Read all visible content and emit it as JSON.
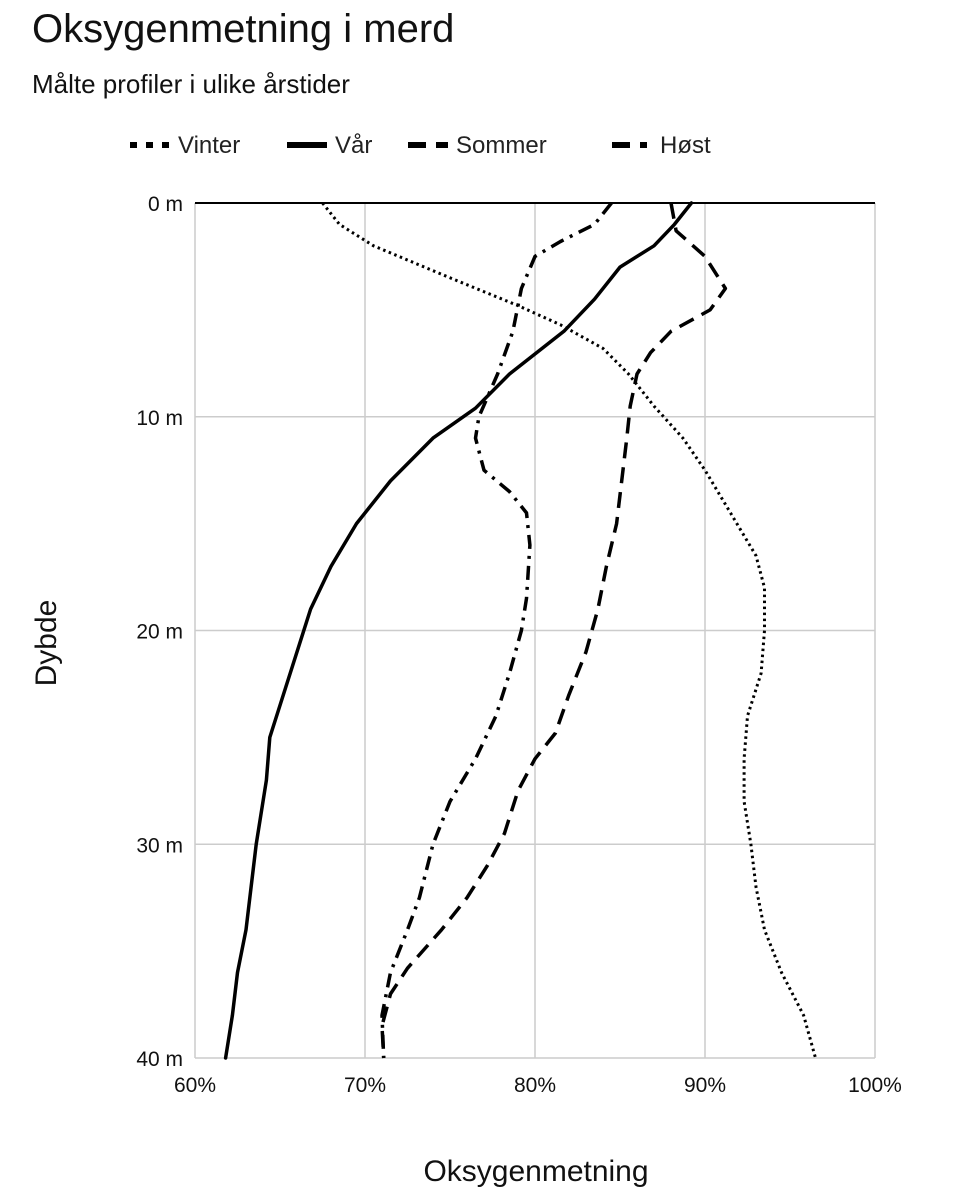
{
  "chart_data": {
    "type": "line",
    "title": "Oksygenmetning i merd",
    "subtitle": "Målte profiler i ulike årstider",
    "xlabel": "Oksygenmetning",
    "ylabel": "Dybde",
    "xlim": [
      60,
      100
    ],
    "ylim": [
      0,
      40
    ],
    "y_inverted": true,
    "x_ticks": [
      60,
      70,
      80,
      90,
      100
    ],
    "x_tick_labels": [
      "60%",
      "70%",
      "80%",
      "90%",
      "100%"
    ],
    "y_ticks": [
      0,
      10,
      20,
      30,
      40
    ],
    "y_tick_labels": [
      "0 m",
      "10 m",
      "20 m",
      "30 m",
      "40 m"
    ],
    "grid": true,
    "legend_position": "top",
    "colors": {
      "series": "#000000",
      "grid": "#cccccc"
    },
    "series": [
      {
        "name": "Vinter",
        "style": "dotted",
        "points": [
          [
            67.5,
            0
          ],
          [
            68.5,
            1
          ],
          [
            70.5,
            2
          ],
          [
            75,
            3.5
          ],
          [
            79,
            4.8
          ],
          [
            81.5,
            5.7
          ],
          [
            84,
            6.8
          ],
          [
            85.5,
            8
          ],
          [
            87,
            9.5
          ],
          [
            88.7,
            11
          ],
          [
            90,
            12.5
          ],
          [
            91.5,
            14.5
          ],
          [
            93,
            16.5
          ],
          [
            93.5,
            18
          ],
          [
            93.5,
            20
          ],
          [
            93.3,
            22
          ],
          [
            92.5,
            24
          ],
          [
            92.3,
            26
          ],
          [
            92.3,
            28
          ],
          [
            92.7,
            30
          ],
          [
            93,
            32
          ],
          [
            93.5,
            34
          ],
          [
            94.5,
            36
          ],
          [
            95.8,
            38
          ],
          [
            96.5,
            40
          ]
        ]
      },
      {
        "name": "Vår",
        "style": "solid",
        "points": [
          [
            89.2,
            0
          ],
          [
            88.2,
            1
          ],
          [
            87,
            2
          ],
          [
            85,
            3
          ],
          [
            83.5,
            4.5
          ],
          [
            81.7,
            6
          ],
          [
            78.5,
            8
          ],
          [
            76.5,
            9.6
          ],
          [
            74,
            11
          ],
          [
            71.5,
            13
          ],
          [
            69.5,
            15
          ],
          [
            68,
            17
          ],
          [
            66.8,
            19
          ],
          [
            66,
            21
          ],
          [
            65.2,
            23
          ],
          [
            64.4,
            25
          ],
          [
            64.3,
            26
          ],
          [
            64.2,
            27
          ],
          [
            64,
            28
          ],
          [
            63.6,
            30
          ],
          [
            63.3,
            32
          ],
          [
            63,
            34
          ],
          [
            62.5,
            36
          ],
          [
            62.2,
            38
          ],
          [
            61.8,
            40
          ]
        ]
      },
      {
        "name": "Sommer",
        "style": "dashed",
        "points": [
          [
            88,
            0
          ],
          [
            88.3,
            1.3
          ],
          [
            90,
            2.5
          ],
          [
            91.2,
            4
          ],
          [
            90.3,
            5
          ],
          [
            88,
            6
          ],
          [
            86.8,
            7
          ],
          [
            86,
            8
          ],
          [
            85.6,
            9.5
          ],
          [
            85.4,
            11
          ],
          [
            85.1,
            13
          ],
          [
            84.8,
            15
          ],
          [
            84.2,
            17
          ],
          [
            83.7,
            19
          ],
          [
            83,
            21
          ],
          [
            82,
            23
          ],
          [
            81.2,
            24.8
          ],
          [
            80,
            26
          ],
          [
            79,
            27.5
          ],
          [
            78.2,
            29.5
          ],
          [
            77.2,
            31
          ],
          [
            76,
            32.5
          ],
          [
            74.5,
            34
          ],
          [
            72.5,
            35.8
          ],
          [
            71.5,
            37
          ],
          [
            71,
            38.5
          ],
          [
            71.1,
            40
          ]
        ]
      },
      {
        "name": "Høst",
        "style": "dashdot",
        "points": [
          [
            84.5,
            0
          ],
          [
            83.5,
            1
          ],
          [
            81.5,
            1.8
          ],
          [
            80,
            2.5
          ],
          [
            79.2,
            4
          ],
          [
            78.7,
            6
          ],
          [
            77.8,
            8
          ],
          [
            76.7,
            10
          ],
          [
            76.5,
            11
          ],
          [
            77,
            12.5
          ],
          [
            78.5,
            13.5
          ],
          [
            79.5,
            14.5
          ],
          [
            79.7,
            16
          ],
          [
            79.5,
            18.5
          ],
          [
            79.2,
            20
          ],
          [
            78.5,
            22
          ],
          [
            77.7,
            24
          ],
          [
            76.5,
            26
          ],
          [
            75,
            28
          ],
          [
            74,
            30
          ],
          [
            73.2,
            32.5
          ],
          [
            72.5,
            34
          ],
          [
            71.5,
            36
          ],
          [
            71,
            38
          ],
          [
            71.1,
            40
          ]
        ]
      }
    ]
  }
}
